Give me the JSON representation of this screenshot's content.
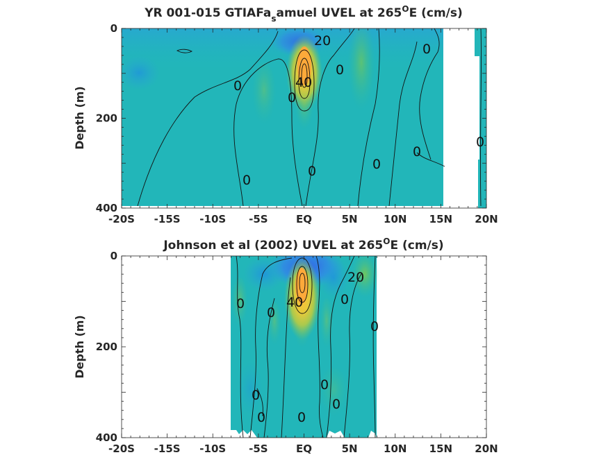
{
  "chart_data": [
    {
      "type": "contour",
      "title": "YR 001-015 GTIAFa",
      "title_sub": "s",
      "title_rest": "amuel UVEL at 265",
      "title_sup": "O",
      "title_end": "E (cm/s)",
      "ylabel": "Depth (m)",
      "x_ticks": [
        "-20S",
        "-15S",
        "-10S",
        "-5S",
        "EQ",
        "5N",
        "10N",
        "15N",
        "20N"
      ],
      "x_values": [
        -20,
        -15,
        -10,
        -5,
        0,
        5,
        10,
        15,
        20
      ],
      "xlim": [
        -20,
        20
      ],
      "y_ticks": [
        "0",
        "200",
        "400"
      ],
      "y_values": [
        0,
        200,
        400
      ],
      "ylim": [
        0,
        400
      ],
      "y_reversed": true,
      "data_extent": {
        "x": [
          -20,
          15.3
        ],
        "note": "land/no data east of ~15N"
      },
      "contour_labels": [
        {
          "text": "20",
          "x": 1.2,
          "depth": 30
        },
        {
          "text": "0",
          "x": -7.0,
          "depth": 130
        },
        {
          "text": "40",
          "x": 0.0,
          "depth": 125
        },
        {
          "text": "0",
          "x": -1.2,
          "depth": 155
        },
        {
          "text": "0",
          "x": 4.0,
          "depth": 95
        },
        {
          "text": "0",
          "x": 13.5,
          "depth": 50
        },
        {
          "text": "0",
          "x": 12.5,
          "depth": 275
        },
        {
          "text": "0",
          "x": 8.0,
          "depth": 300
        },
        {
          "text": "0",
          "x": 1.0,
          "depth": 315
        },
        {
          "text": "0",
          "x": -6.3,
          "depth": 335
        },
        {
          "text": "0",
          "x": 19.7,
          "depth": 250
        }
      ],
      "core": {
        "x": 0.3,
        "depth": 90,
        "max_speed": "> 40"
      }
    },
    {
      "type": "contour",
      "title": "Johnson et al (2002) UVEL at 265",
      "title_sup": "O",
      "title_end": "E (cm/s)",
      "ylabel": "Depth (m)",
      "x_ticks": [
        "-20S",
        "-15S",
        "-10S",
        "-5S",
        "EQ",
        "5N",
        "10N",
        "15N",
        "20N"
      ],
      "x_values": [
        -20,
        -15,
        -10,
        -5,
        0,
        5,
        10,
        15,
        20
      ],
      "xlim": [
        -20,
        20
      ],
      "y_ticks": [
        "0",
        "200",
        "400"
      ],
      "y_values": [
        0,
        200,
        400
      ],
      "ylim": [
        0,
        400
      ],
      "y_reversed": true,
      "data_extent": {
        "x": [
          -8,
          8
        ]
      },
      "contour_labels": [
        {
          "text": "0",
          "x": -6.5,
          "depth": 105
        },
        {
          "text": "0",
          "x": -3.2,
          "depth": 120
        },
        {
          "text": "40",
          "x": -1.0,
          "depth": 100
        },
        {
          "text": "0",
          "x": 4.5,
          "depth": 95
        },
        {
          "text": "20",
          "x": 6.0,
          "depth": 50
        },
        {
          "text": "0",
          "x": 8.0,
          "depth": 155
        },
        {
          "text": "0",
          "x": 2.6,
          "depth": 280
        },
        {
          "text": "0",
          "x": 4.0,
          "depth": 325
        },
        {
          "text": "0",
          "x": -5.0,
          "depth": 305
        },
        {
          "text": "0",
          "x": -4.6,
          "depth": 350
        },
        {
          "text": "0",
          "x": 0.0,
          "depth": 350
        }
      ],
      "core": {
        "x": 0.0,
        "depth": 70,
        "max_speed": "> 40"
      }
    }
  ]
}
